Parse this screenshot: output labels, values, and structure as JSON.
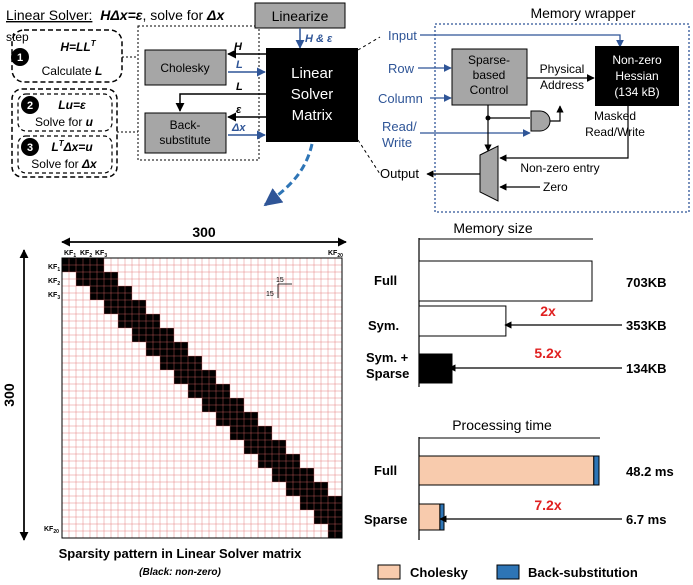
{
  "solver": {
    "title": "Linear Solver:",
    "equation": "HΔx=ε",
    "title_suffix": ", solve for ",
    "title_var": "Δx",
    "step_label": "step",
    "steps": [
      {
        "num": "1",
        "eq": "H=LL",
        "eq_sup": "T",
        "desc": "Calculate ",
        "desc_var": "L"
      },
      {
        "num": "2",
        "eq": "Lu=ε",
        "desc": "Solve for ",
        "desc_var": "u"
      },
      {
        "num": "3",
        "eq_pre": "L",
        "eq_sup": "T",
        "eq": "Δx=u",
        "desc": "Solve for ",
        "desc_var": "Δx"
      }
    ],
    "cholesky": "Cholesky",
    "backsub": [
      "Back-",
      "substitute"
    ],
    "matrix": [
      "Linear",
      "Solver",
      "Matrix"
    ],
    "linearize": "Linearize",
    "port_labels": {
      "H": "H",
      "L1": "L",
      "L2": "L",
      "eps": "ε",
      "dx": "Δx",
      "in": "H & ε"
    }
  },
  "memory_wrapper": {
    "title": "Memory wrapper",
    "inputs": [
      "Input",
      "Row",
      "Column",
      "Read/",
      "Write"
    ],
    "control": [
      "Sparse-",
      "based",
      "Control"
    ],
    "physical": [
      "Physical",
      "Address"
    ],
    "hessian": [
      "Non-zero",
      "Hessian",
      "(134 kB)"
    ],
    "masked": [
      "Masked",
      "Read/Write"
    ],
    "nonzero_entry": "Non-zero entry",
    "zero": "Zero",
    "output": "Output"
  },
  "sparsity": {
    "size_label": "300",
    "kf": [
      "KF",
      "KF",
      "KF",
      "KF"
    ],
    "kf_subs": [
      "1",
      "2",
      "3",
      "20"
    ],
    "cell": "15",
    "caption": "Sparsity pattern in Linear Solver matrix",
    "subcaption": "(Black: non-zero)"
  },
  "memory_chart": {
    "title": "Memory size",
    "categories": [
      "Full",
      "Sym.",
      "Sym. + Sparse"
    ],
    "values": [
      703,
      353,
      134
    ],
    "value_labels": [
      "703KB",
      "353KB",
      "134KB"
    ],
    "reductions": [
      "2x",
      "5.2x"
    ],
    "colors": {
      "bar": "#ffffff",
      "sparse": "#000000",
      "reduction": "#e02020"
    }
  },
  "chart_data": [
    {
      "type": "bar",
      "title": "Memory size",
      "categories": [
        "Full",
        "Sym.",
        "Sym. + Sparse"
      ],
      "values": [
        703,
        353,
        134
      ],
      "unit": "KB"
    },
    {
      "type": "bar",
      "title": "Processing time",
      "categories": [
        "Full",
        "Sparse"
      ],
      "series": [
        {
          "name": "Cholesky",
          "values": [
            46.8,
            5.6
          ]
        },
        {
          "name": "Back-substitution",
          "values": [
            1.4,
            1.1
          ]
        }
      ],
      "totals": [
        48.2,
        6.7
      ],
      "unit": "ms"
    }
  ],
  "time_chart": {
    "title": "Processing time",
    "categories": [
      "Full",
      "Sparse"
    ],
    "totals": [
      48.2,
      6.7
    ],
    "cholesky": [
      46.8,
      5.6
    ],
    "backsub": [
      1.4,
      1.1
    ],
    "value_labels": [
      "48.2 ms",
      "6.7 ms"
    ],
    "reduction": "7.2x",
    "legend": [
      "Cholesky",
      "Back-substitution"
    ],
    "colors": {
      "cholesky": "#f8cbad",
      "backsub": "#2e75b6",
      "reduction": "#e02020"
    }
  }
}
